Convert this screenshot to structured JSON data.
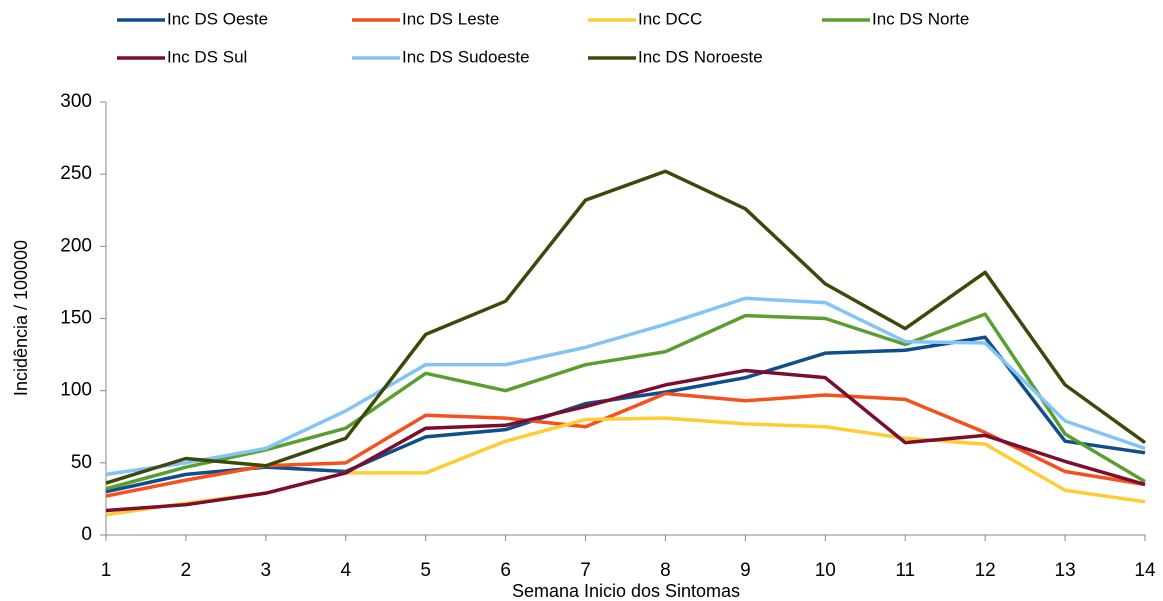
{
  "chart_data": {
    "type": "line",
    "x_label": "Semana Inicio dos Sintomas",
    "y_label": "Incidência / 100000",
    "x": [
      1,
      2,
      3,
      4,
      5,
      6,
      7,
      8,
      9,
      10,
      11,
      12,
      13,
      14
    ],
    "xlim": [
      1,
      14
    ],
    "xticks": [
      1,
      2,
      3,
      4,
      5,
      6,
      7,
      8,
      9,
      10,
      11,
      12,
      13,
      14
    ],
    "ylim": [
      0,
      300
    ],
    "yticks": [
      0,
      50,
      100,
      150,
      200,
      250,
      300
    ],
    "grid": false,
    "legend": "top",
    "series": [
      {
        "name": "Inc DS Oeste",
        "color": "#104e8b",
        "values": [
          30,
          42,
          47,
          44,
          68,
          73,
          91,
          99,
          109,
          126,
          128,
          137,
          65,
          57
        ]
      },
      {
        "name": "Inc DS Leste",
        "color": "#f4511e",
        "values": [
          27,
          38,
          48,
          50,
          83,
          81,
          75,
          98,
          93,
          97,
          94,
          71,
          44,
          35
        ]
      },
      {
        "name": "Inc DCC",
        "color": "#ffcc33",
        "values": [
          14,
          22,
          29,
          43,
          43,
          65,
          80,
          81,
          77,
          75,
          67,
          63,
          31,
          23
        ]
      },
      {
        "name": "Inc DS Norte",
        "color": "#5a9e2f",
        "values": [
          32,
          47,
          59,
          74,
          112,
          100,
          118,
          127,
          152,
          150,
          132,
          153,
          70,
          37
        ]
      },
      {
        "name": "Inc DS Sul",
        "color": "#7b0d2e",
        "values": [
          17,
          21,
          29,
          43,
          74,
          76,
          89,
          104,
          114,
          109,
          64,
          69,
          51,
          35
        ]
      },
      {
        "name": "Inc DS Sudoeste",
        "color": "#82c4f5",
        "values": [
          42,
          50,
          60,
          86,
          118,
          118,
          130,
          146,
          164,
          161,
          134,
          133,
          79,
          60
        ]
      },
      {
        "name": "Inc DS Noroeste",
        "color": "#3b4a0a",
        "values": [
          36,
          53,
          48,
          67,
          139,
          162,
          232,
          252,
          226,
          174,
          143,
          182,
          104,
          64
        ]
      }
    ]
  }
}
